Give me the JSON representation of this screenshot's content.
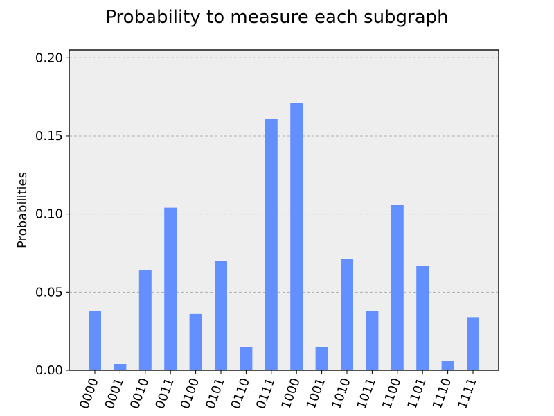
{
  "chart_data": {
    "type": "bar",
    "title": "Probability to measure each subgraph",
    "xlabel": "",
    "ylabel": "Probabilities",
    "categories": [
      "0000",
      "0001",
      "0010",
      "0011",
      "0100",
      "0101",
      "0110",
      "0111",
      "1000",
      "1001",
      "1010",
      "1011",
      "1100",
      "1101",
      "1110",
      "1111"
    ],
    "values": [
      0.038,
      0.004,
      0.064,
      0.104,
      0.036,
      0.07,
      0.015,
      0.161,
      0.171,
      0.015,
      0.071,
      0.038,
      0.106,
      0.067,
      0.006,
      0.034
    ],
    "ylim": [
      0,
      0.205
    ],
    "yticks": [
      "0.00",
      "0.05",
      "0.10",
      "0.15",
      "0.20"
    ],
    "grid": true,
    "bar_color": "#648fff",
    "background_color": "#eeeeee"
  }
}
